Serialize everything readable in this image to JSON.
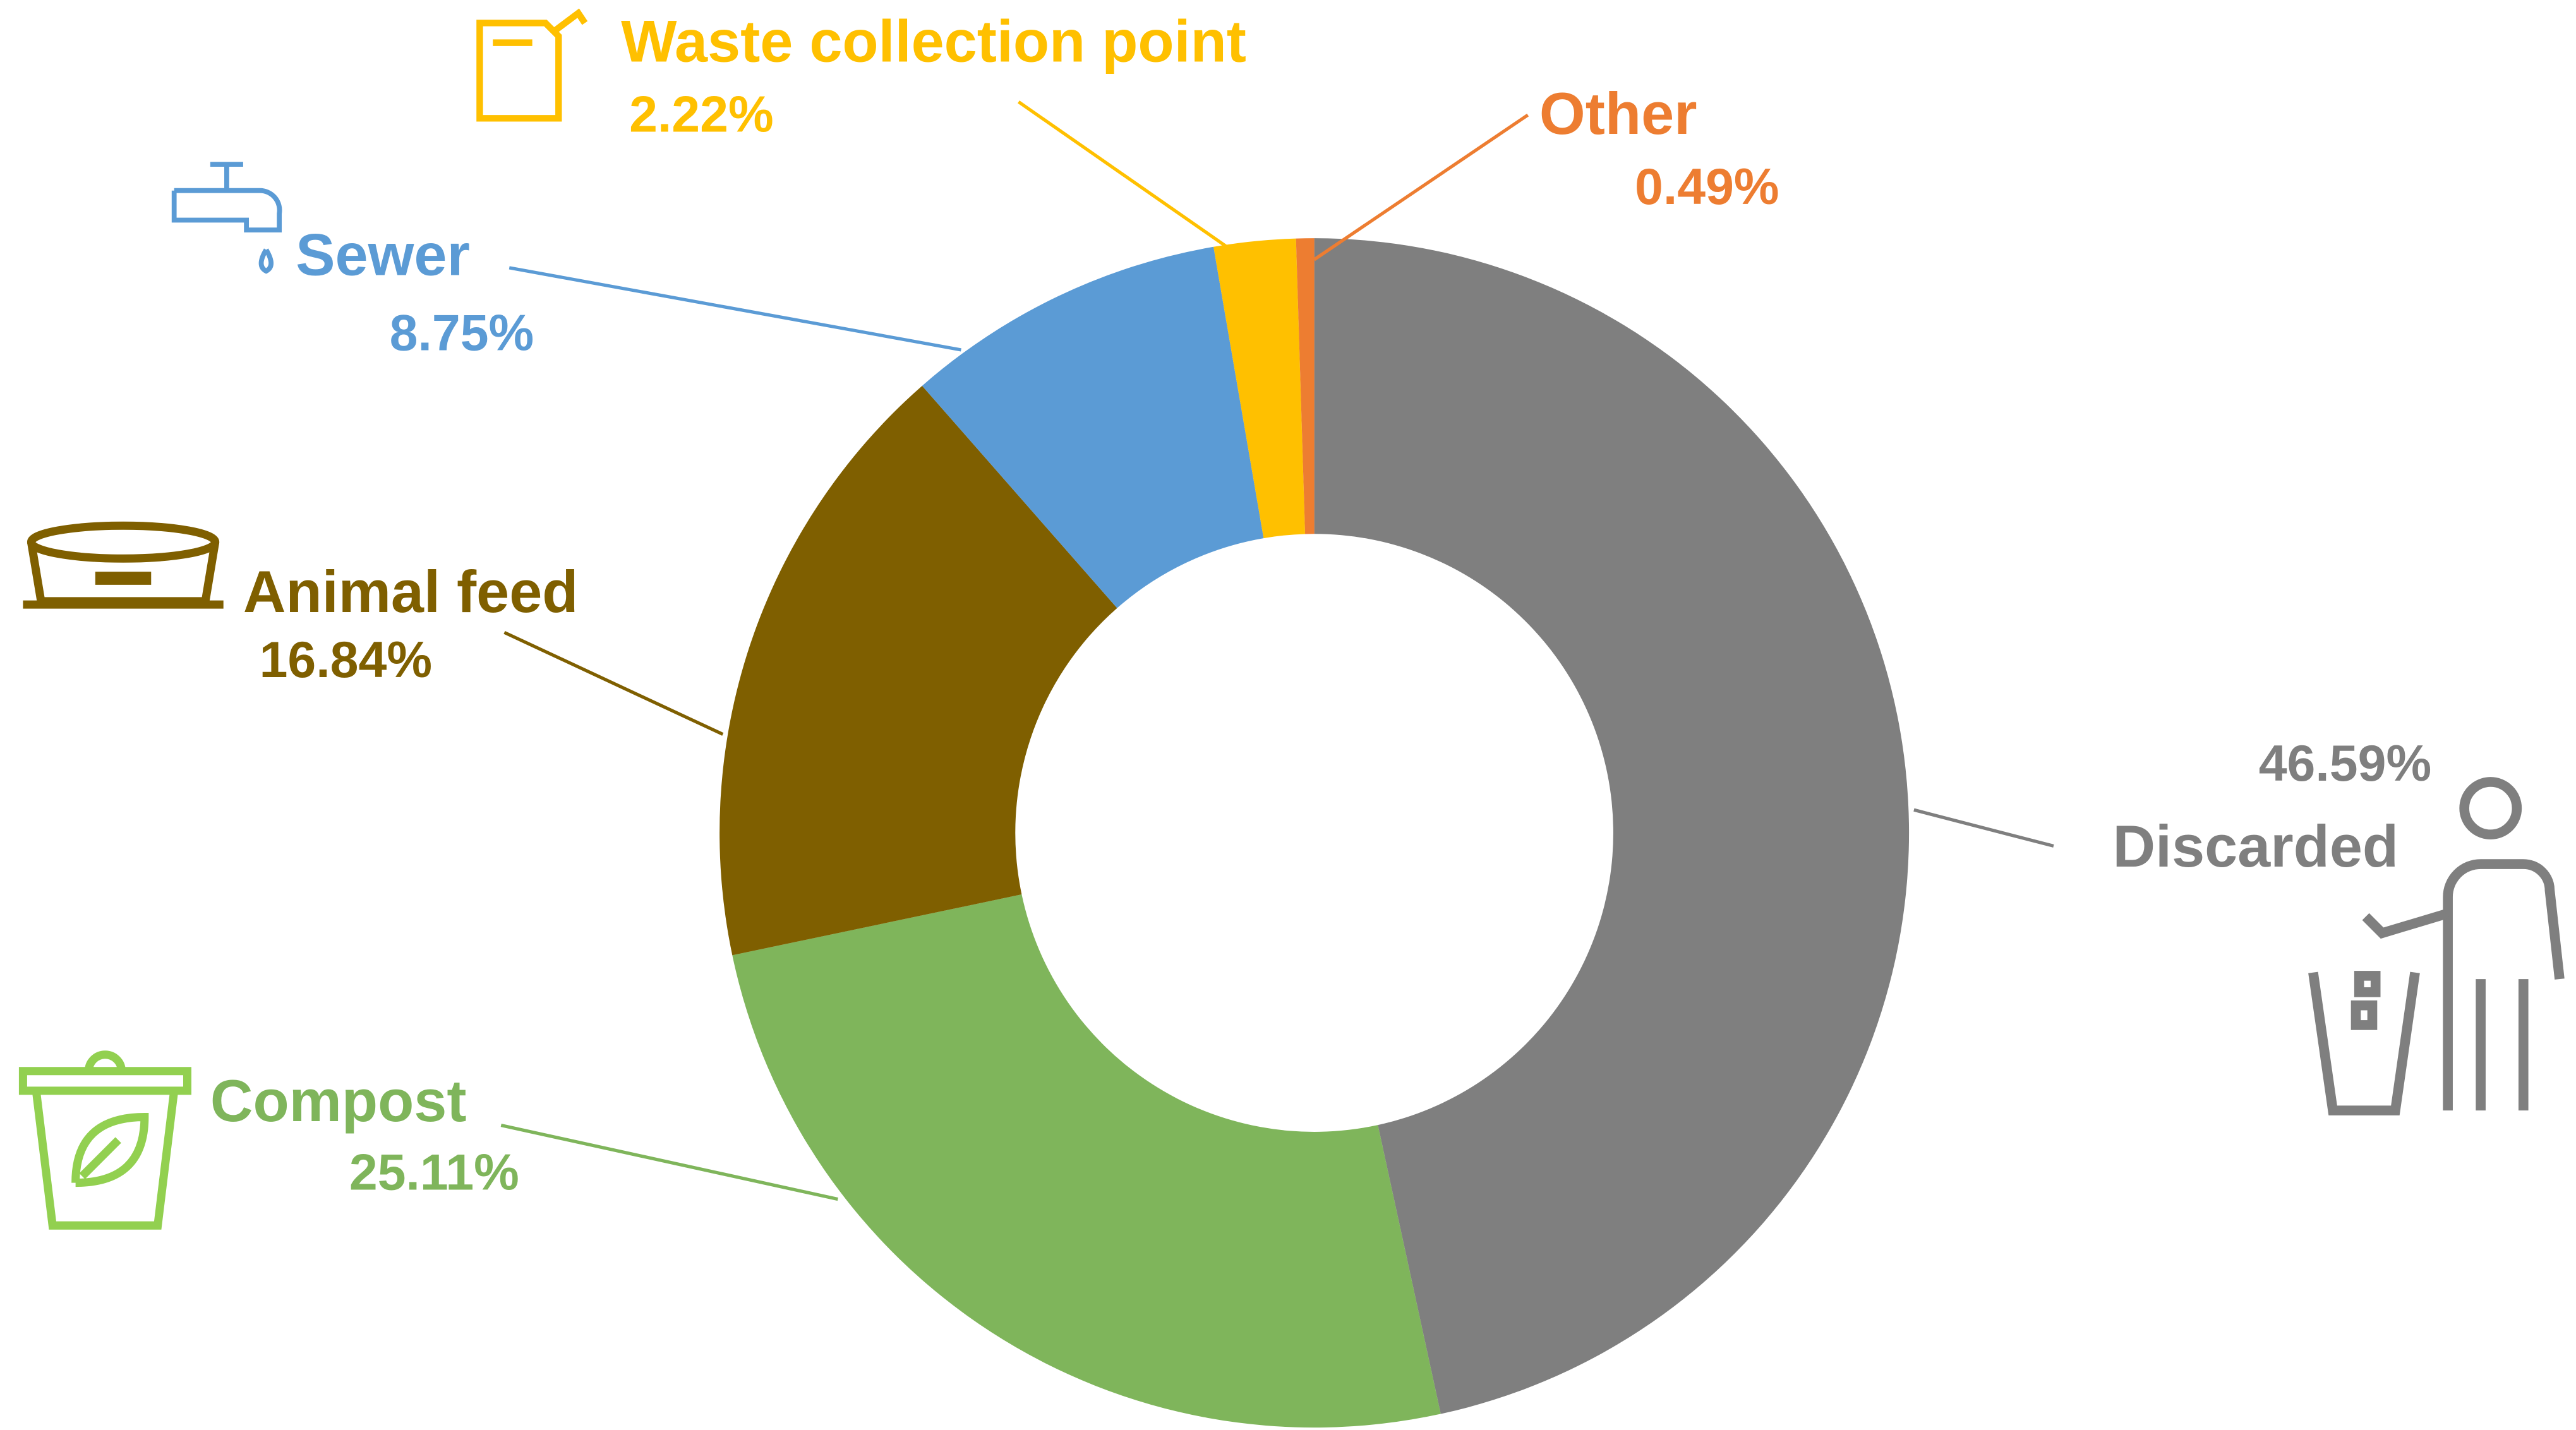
{
  "chart_data": {
    "type": "donut",
    "categories": [
      "Discarded",
      "Compost",
      "Animal feed",
      "Sewer",
      "Waste collection point",
      "Other"
    ],
    "values": [
      46.59,
      25.11,
      16.84,
      8.75,
      2.22,
      0.49
    ],
    "value_labels": [
      "46.59%",
      "25.11%",
      "16.84%",
      "8.75%",
      "2.22%",
      "0.49%"
    ],
    "colors": [
      "#7f7f7f",
      "#7fb55b",
      "#7f5f00",
      "#5b9bd5",
      "#ffc000",
      "#ed7d31"
    ]
  }
}
